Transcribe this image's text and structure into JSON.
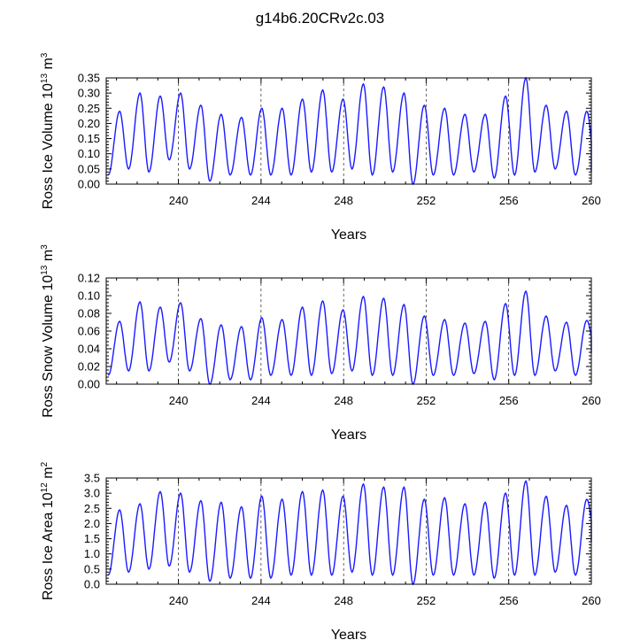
{
  "title": "g14b6.20CRv2c.03",
  "series_color": "#1a1aff",
  "chart_data": [
    {
      "type": "line",
      "ylabel_main": "Ross Ice Volume 10",
      "ylabel_sup": "13",
      "ylabel_unit": " m",
      "ylabel_unit_sup": "3",
      "xlabel": "Years",
      "xlim": [
        236.5,
        260
      ],
      "ylim": [
        0,
        0.35
      ],
      "xticks": [
        240,
        244,
        248,
        252,
        256,
        260
      ],
      "xtick_labels": [
        "240",
        "244",
        "248",
        "252",
        "256",
        "260"
      ],
      "yticks": [
        0,
        0.05,
        0.1,
        0.15,
        0.2,
        0.25,
        0.3,
        0.35
      ],
      "ytick_labels": [
        "0.00",
        "0.05",
        "0.10",
        "0.15",
        "0.20",
        "0.25",
        "0.30",
        "0.35"
      ],
      "minima": [
        0.03,
        0.05,
        0.04,
        0.08,
        0.05,
        0.01,
        0.03,
        0.03,
        0.03,
        0.03,
        0.04,
        0.04,
        0.05,
        0.03,
        0.04,
        0.0,
        0.03,
        0.03,
        0.04,
        0.02,
        0.03,
        0.04,
        0.05,
        0.03,
        0.04
      ],
      "maxima": [
        0.24,
        0.3,
        0.29,
        0.3,
        0.26,
        0.23,
        0.22,
        0.25,
        0.25,
        0.28,
        0.31,
        0.28,
        0.33,
        0.32,
        0.3,
        0.26,
        0.25,
        0.23,
        0.23,
        0.29,
        0.35,
        0.26,
        0.24,
        0.24
      ]
    },
    {
      "type": "line",
      "ylabel_main": "Ross Snow Volume 10",
      "ylabel_sup": "13",
      "ylabel_unit": " m",
      "ylabel_unit_sup": "3",
      "xlabel": "Years",
      "xlim": [
        236.5,
        260
      ],
      "ylim": [
        0,
        0.12
      ],
      "xticks": [
        240,
        244,
        248,
        252,
        256,
        260
      ],
      "xtick_labels": [
        "240",
        "244",
        "248",
        "252",
        "256",
        "260"
      ],
      "yticks": [
        0,
        0.02,
        0.04,
        0.06,
        0.08,
        0.1,
        0.12
      ],
      "ytick_labels": [
        "0.00",
        "0.02",
        "0.04",
        "0.06",
        "0.08",
        "0.10",
        "0.12"
      ],
      "minima": [
        0.01,
        0.015,
        0.015,
        0.025,
        0.015,
        0.0,
        0.005,
        0.005,
        0.01,
        0.01,
        0.01,
        0.012,
        0.015,
        0.01,
        0.01,
        0.0,
        0.01,
        0.01,
        0.012,
        0.005,
        0.01,
        0.01,
        0.015,
        0.01,
        0.035
      ],
      "maxima": [
        0.071,
        0.093,
        0.087,
        0.092,
        0.074,
        0.067,
        0.065,
        0.075,
        0.073,
        0.087,
        0.094,
        0.084,
        0.099,
        0.097,
        0.09,
        0.077,
        0.073,
        0.069,
        0.071,
        0.091,
        0.105,
        0.077,
        0.07,
        0.072
      ]
    },
    {
      "type": "line",
      "ylabel_main": "Ross Ice Area 10",
      "ylabel_sup": "12",
      "ylabel_unit": " m",
      "ylabel_unit_sup": "2",
      "xlabel": "Years",
      "xlim": [
        236.5,
        260
      ],
      "ylim": [
        0,
        3.5
      ],
      "xticks": [
        240,
        244,
        248,
        252,
        256,
        260
      ],
      "xtick_labels": [
        "240",
        "244",
        "248",
        "252",
        "256",
        "260"
      ],
      "yticks": [
        0,
        0.5,
        1,
        1.5,
        2,
        2.5,
        3,
        3.5
      ],
      "ytick_labels": [
        "0.0",
        "0.5",
        "1.0",
        "1.5",
        "2.0",
        "2.5",
        "3.0",
        "3.5"
      ],
      "minima": [
        0.3,
        0.4,
        0.5,
        0.6,
        0.4,
        0.1,
        0.2,
        0.2,
        0.2,
        0.3,
        0.3,
        0.3,
        0.4,
        0.3,
        0.3,
        0.0,
        0.3,
        0.3,
        0.3,
        0.2,
        0.3,
        0.3,
        0.4,
        0.3,
        1.4
      ],
      "maxima": [
        2.45,
        2.65,
        3.05,
        3.0,
        2.75,
        2.7,
        2.55,
        2.9,
        2.8,
        3.05,
        3.1,
        2.9,
        3.3,
        3.2,
        3.2,
        2.8,
        2.85,
        2.65,
        2.7,
        3.0,
        3.4,
        2.9,
        2.6,
        2.8
      ]
    }
  ]
}
